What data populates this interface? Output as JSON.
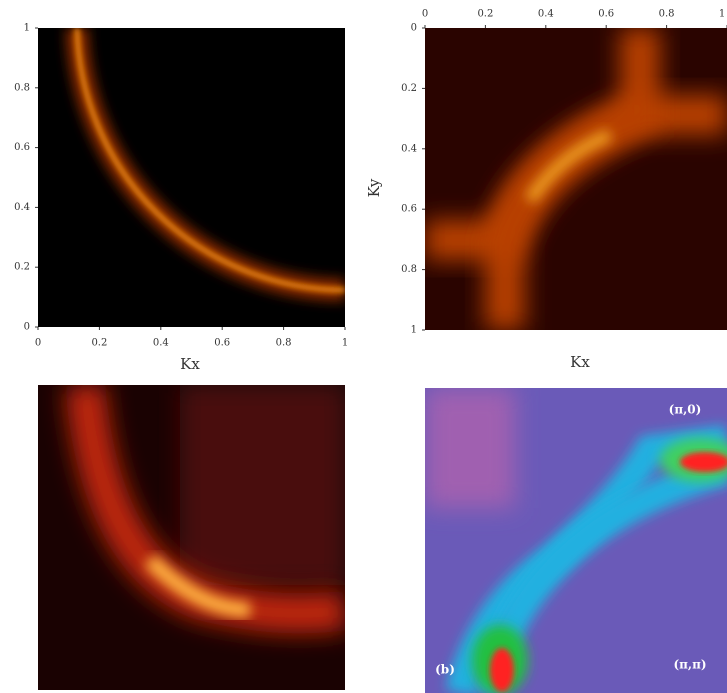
{
  "chart_data": [
    {
      "type": "heatmap",
      "xlabel": "Kx",
      "xlim": [
        0,
        1
      ],
      "ylim": [
        0,
        1
      ],
      "xticks": [
        0,
        0.2,
        0.4,
        0.6,
        0.8,
        1
      ],
      "yticks": [
        0,
        0.2,
        0.4,
        0.6,
        0.8,
        1
      ]
    },
    {
      "type": "heatmap",
      "xlabel": "Kx",
      "ylabel": "Ky",
      "xlim": [
        0,
        1
      ],
      "ylim": [
        1,
        0
      ],
      "xticks": [
        0,
        0.2,
        0.4,
        0.6,
        0.8,
        1
      ],
      "yticks": [
        0,
        0.2,
        0.4,
        0.6,
        0.8,
        1
      ]
    },
    {
      "type": "image"
    },
    {
      "type": "image",
      "annotations": [
        "(π,0)",
        "(π,π)",
        "(b)"
      ]
    }
  ]
}
